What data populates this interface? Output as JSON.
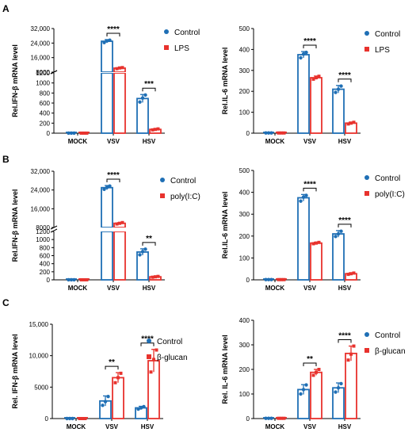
{
  "colors": {
    "control": "#1f6fb5",
    "treat": "#e8322d",
    "axis": "#000000"
  },
  "chart_data": [
    {
      "panel": "A",
      "type": "bar",
      "categories": [
        "MOCK",
        "VSV",
        "HSV"
      ],
      "ylabel": "Rel.IFN-β mRNA level",
      "yscale": "broken",
      "ylim_low": [
        0,
        1200
      ],
      "ylim_high": [
        8000,
        32000
      ],
      "ticks_low": [
        0,
        200,
        400,
        600,
        800,
        1000,
        1200
      ],
      "ticks_high": [
        8000,
        16000,
        24000,
        32000
      ],
      "series": [
        {
          "name": "Control",
          "values": [
            1,
            25000,
            690
          ],
          "errors": [
            0,
            900,
            80
          ],
          "points": [
            [
              1,
              1,
              1
            ],
            [
              24300,
              25200,
              25600
            ],
            [
              620,
              700,
              760
            ]
          ]
        },
        {
          "name": "LPS",
          "values": [
            1,
            10200,
            75
          ],
          "errors": [
            0,
            350,
            15
          ],
          "points": [
            [
              1,
              1,
              1
            ],
            [
              9900,
              10300,
              10500
            ],
            [
              65,
              75,
              85
            ]
          ]
        }
      ],
      "significance": [
        {
          "category": "VSV",
          "label": "****"
        },
        {
          "category": "HSV",
          "label": "***"
        }
      ],
      "legend_position": "top-right"
    },
    {
      "panel": "A2",
      "type": "bar",
      "categories": [
        "MOCK",
        "VSV",
        "HSV"
      ],
      "ylabel": "Rel.IL-6 mRNA level",
      "ylim": [
        0,
        500
      ],
      "ticks": [
        0,
        100,
        200,
        300,
        400,
        500
      ],
      "series": [
        {
          "name": "Control",
          "values": [
            1,
            375,
            210
          ],
          "errors": [
            0,
            15,
            18
          ],
          "points": [
            [
              1,
              1,
              1
            ],
            [
              360,
              378,
              386
            ],
            [
              195,
              210,
              225
            ]
          ]
        },
        {
          "name": "LPS",
          "values": [
            1,
            265,
            48
          ],
          "errors": [
            0,
            8,
            5
          ],
          "points": [
            [
              1,
              1,
              1
            ],
            [
              258,
              265,
              272
            ],
            [
              44,
              48,
              52
            ]
          ]
        }
      ],
      "significance": [
        {
          "category": "VSV",
          "label": "****"
        },
        {
          "category": "HSV",
          "label": "****"
        }
      ],
      "legend_position": "top-right"
    },
    {
      "panel": "B",
      "type": "bar",
      "categories": [
        "MOCK",
        "VSV",
        "HSV"
      ],
      "ylabel": "Rel.IFN-β mRNA level",
      "yscale": "broken",
      "ylim_low": [
        0,
        1200
      ],
      "ylim_high": [
        8000,
        32000
      ],
      "ticks_low": [
        0,
        200,
        400,
        600,
        800,
        1000,
        1200
      ],
      "ticks_high": [
        8000,
        16000,
        24000,
        32000
      ],
      "series": [
        {
          "name": "Control",
          "values": [
            1,
            25000,
            690
          ],
          "errors": [
            0,
            900,
            80
          ],
          "points": [
            [
              1,
              1,
              1
            ],
            [
              24300,
              25100,
              25700
            ],
            [
              620,
              700,
              760
            ]
          ]
        },
        {
          "name": "poly(I:C)",
          "values": [
            1,
            9800,
            75
          ],
          "errors": [
            0,
            300,
            12
          ],
          "points": [
            [
              1,
              1,
              1
            ],
            [
              9500,
              9800,
              10100
            ],
            [
              65,
              75,
              85
            ]
          ]
        }
      ],
      "significance": [
        {
          "category": "VSV",
          "label": "****"
        },
        {
          "category": "HSV",
          "label": "**"
        }
      ],
      "legend_position": "top-right"
    },
    {
      "panel": "B2",
      "type": "bar",
      "categories": [
        "MOCK",
        "VSV",
        "HSV"
      ],
      "ylabel": "Rel.IL-6 mRNA level",
      "ylim": [
        0,
        500
      ],
      "ticks": [
        0,
        100,
        200,
        300,
        400,
        500
      ],
      "series": [
        {
          "name": "Control",
          "values": [
            1,
            375,
            210
          ],
          "errors": [
            0,
            15,
            15
          ],
          "points": [
            [
              1,
              1,
              1
            ],
            [
              360,
              378,
              386
            ],
            [
              198,
              210,
              222
            ]
          ]
        },
        {
          "name": "poly(I:C)",
          "values": [
            1,
            168,
            28
          ],
          "errors": [
            0,
            4,
            4
          ],
          "points": [
            [
              1,
              1,
              1
            ],
            [
              165,
              168,
              171
            ],
            [
              25,
              28,
              31
            ]
          ]
        }
      ],
      "significance": [
        {
          "category": "VSV",
          "label": "****"
        },
        {
          "category": "HSV",
          "label": "****"
        }
      ],
      "legend_position": "top-right"
    },
    {
      "panel": "C",
      "type": "bar",
      "categories": [
        "MOCK",
        "VSV",
        "HSV"
      ],
      "ylabel": "Rel. IFN-β mRNA level",
      "ylim": [
        0,
        15000
      ],
      "ticks": [
        0,
        5000,
        10000,
        15000
      ],
      "tick_labels": [
        "0",
        "5000",
        "10,000",
        "15,000"
      ],
      "series": [
        {
          "name": "Control",
          "values": [
            1,
            2800,
            1700
          ],
          "errors": [
            0,
            800,
            250
          ],
          "points": [
            [
              1,
              1,
              1
            ],
            [
              2100,
              2700,
              3500
            ],
            [
              1500,
              1700,
              1900
            ]
          ]
        },
        {
          "name": "β-glucan",
          "values": [
            1,
            6500,
            9200
          ],
          "errors": [
            0,
            800,
            1800
          ],
          "points": [
            [
              1,
              1,
              1
            ],
            [
              5700,
              6500,
              7200
            ],
            [
              7400,
              9400,
              10900
            ]
          ]
        }
      ],
      "significance": [
        {
          "category": "VSV",
          "label": "**"
        },
        {
          "category": "HSV",
          "label": "****"
        }
      ],
      "legend_position": "middle-right"
    },
    {
      "panel": "C2",
      "type": "bar",
      "categories": [
        "MOCK",
        "VSV",
        "HSV"
      ],
      "ylabel": "Rel. IL-6 mRNA level",
      "ylim": [
        0,
        400
      ],
      "ticks": [
        0,
        100,
        200,
        300,
        400
      ],
      "series": [
        {
          "name": "Control",
          "values": [
            1,
            118,
            125
          ],
          "errors": [
            0,
            20,
            20
          ],
          "points": [
            [
              1,
              1,
              1
            ],
            [
              100,
              118,
              137
            ],
            [
              108,
              125,
              142
            ]
          ]
        },
        {
          "name": "β-glucan",
          "values": [
            1,
            188,
            265
          ],
          "errors": [
            0,
            12,
            30
          ],
          "points": [
            [
              1,
              1,
              1
            ],
            [
              176,
              188,
              200
            ],
            [
              238,
              262,
              295
            ]
          ]
        }
      ],
      "significance": [
        {
          "category": "VSV",
          "label": "**"
        },
        {
          "category": "HSV",
          "label": "****"
        }
      ],
      "legend_position": "middle-right"
    }
  ],
  "panel_letters": [
    "A",
    "B",
    "C"
  ]
}
